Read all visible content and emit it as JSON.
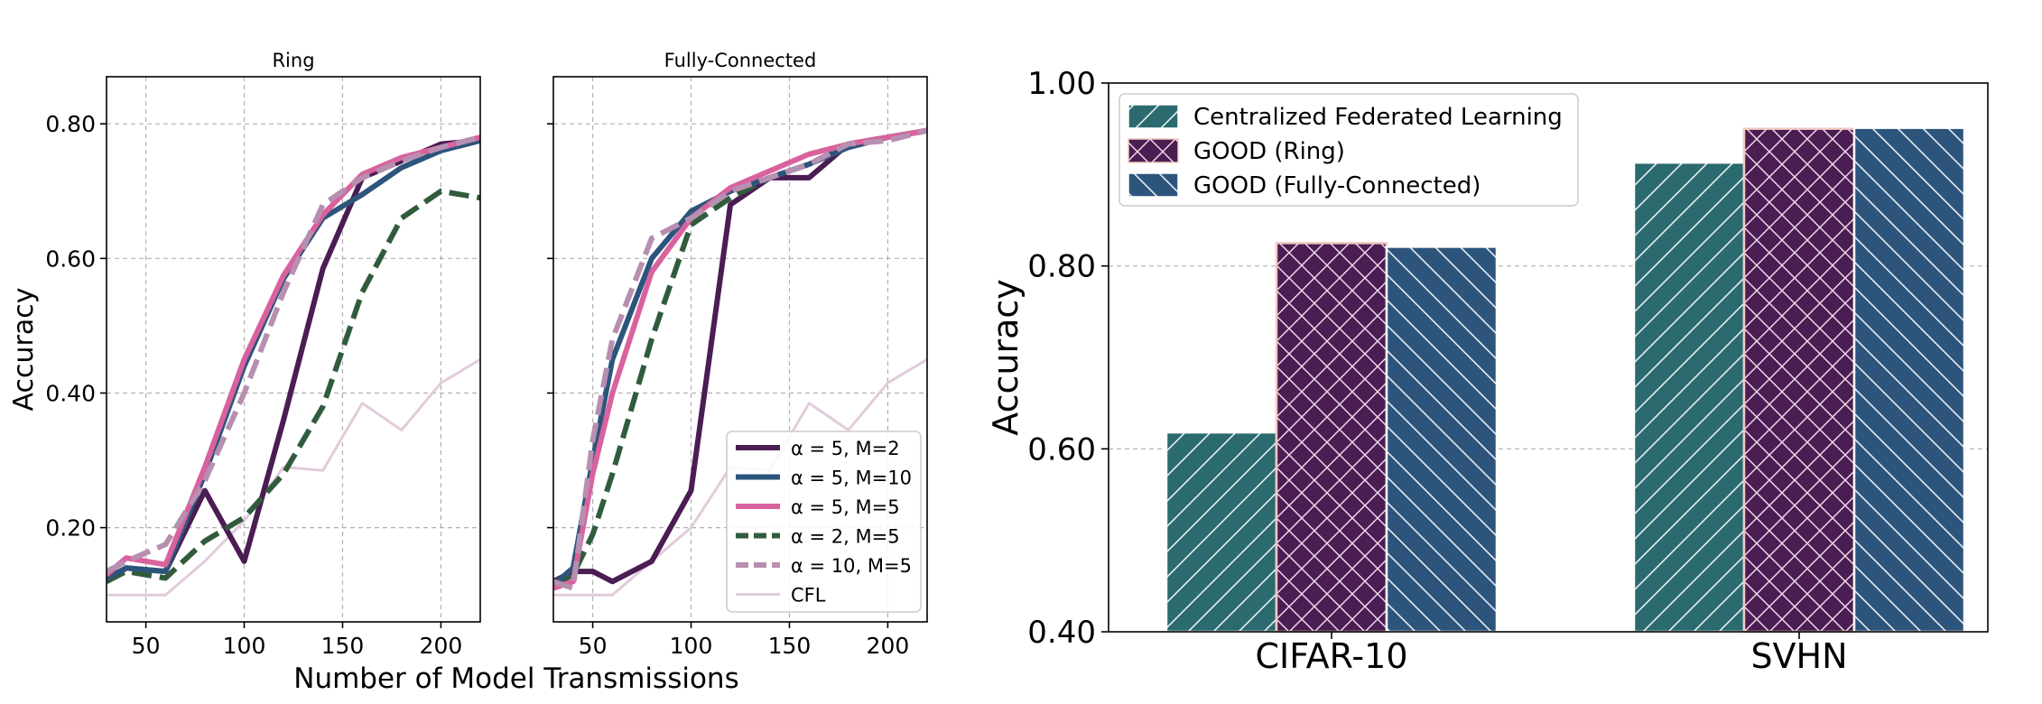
{
  "chart_data": [
    {
      "type": "line",
      "title": "Ring",
      "xlabel": "Number of Model Transmissions",
      "ylabel": "Accuracy",
      "xlim": [
        30,
        220
      ],
      "ylim": [
        0.06,
        0.87
      ],
      "xticks": [
        50,
        100,
        150,
        200
      ],
      "xtick_labels": [
        "50",
        "100",
        "150",
        "200"
      ],
      "yticks": [
        0.2,
        0.4,
        0.6,
        0.8
      ],
      "ytick_labels": [
        "0.20",
        "0.40",
        "0.60",
        "0.80"
      ],
      "grid": true,
      "series": [
        {
          "name": "CFL",
          "color": "#e2cbdc",
          "style": "solid",
          "x": [
            30,
            40,
            60,
            80,
            100,
            120,
            140,
            160,
            180,
            200,
            220
          ],
          "y": [
            0.1,
            0.1,
            0.1,
            0.15,
            0.21,
            0.29,
            0.285,
            0.385,
            0.345,
            0.415,
            0.45
          ]
        },
        {
          "name": "α = 5, M=2",
          "color": "#4a1d53",
          "style": "solid",
          "x": [
            30,
            40,
            60,
            80,
            100,
            120,
            140,
            160,
            180,
            200,
            220
          ],
          "y": [
            0.12,
            0.14,
            0.135,
            0.255,
            0.15,
            0.36,
            0.585,
            0.72,
            0.745,
            0.77,
            0.775
          ]
        },
        {
          "name": "α = 2, M=5",
          "color": "#315c3c",
          "style": "dashed",
          "x": [
            30,
            40,
            60,
            80,
            100,
            120,
            140,
            160,
            180,
            200,
            220
          ],
          "y": [
            0.12,
            0.135,
            0.125,
            0.18,
            0.215,
            0.28,
            0.38,
            0.55,
            0.66,
            0.7,
            0.69
          ]
        },
        {
          "name": "α = 5, M=10",
          "color": "#2d557c",
          "style": "solid",
          "x": [
            30,
            40,
            60,
            80,
            100,
            120,
            140,
            160,
            180,
            200,
            220
          ],
          "y": [
            0.125,
            0.14,
            0.135,
            0.28,
            0.44,
            0.57,
            0.66,
            0.695,
            0.735,
            0.76,
            0.775
          ]
        },
        {
          "name": "α = 5, M=5",
          "color": "#d9629e",
          "style": "solid",
          "x": [
            30,
            40,
            60,
            80,
            100,
            120,
            140,
            160,
            180,
            200,
            220
          ],
          "y": [
            0.13,
            0.155,
            0.145,
            0.29,
            0.45,
            0.575,
            0.665,
            0.725,
            0.75,
            0.765,
            0.78
          ]
        },
        {
          "name": "α = 10, M=5",
          "color": "#b78fb0",
          "style": "dashed",
          "x": [
            30,
            40,
            60,
            80,
            100,
            120,
            140,
            160,
            180,
            200,
            220
          ],
          "y": [
            0.135,
            0.15,
            0.175,
            0.27,
            0.4,
            0.55,
            0.68,
            0.72,
            0.745,
            0.765,
            0.78
          ]
        }
      ]
    },
    {
      "type": "line",
      "title": "Fully-Connected",
      "xlim": [
        30,
        220
      ],
      "ylim": [
        0.06,
        0.87
      ],
      "xticks": [
        50,
        100,
        150,
        200
      ],
      "xtick_labels": [
        "50",
        "100",
        "150",
        "200"
      ],
      "grid": true,
      "legend_position": "lower-right",
      "series": [
        {
          "name": "CFL",
          "color": "#e2cbdc",
          "style": "solid",
          "x": [
            30,
            40,
            60,
            80,
            100,
            120,
            140,
            160,
            180,
            200,
            220
          ],
          "y": [
            0.1,
            0.1,
            0.1,
            0.15,
            0.2,
            0.29,
            0.285,
            0.385,
            0.345,
            0.415,
            0.45
          ]
        },
        {
          "name": "α = 5, M=2",
          "color": "#4a1d53",
          "style": "solid",
          "x": [
            30,
            40,
            50,
            60,
            80,
            100,
            120,
            140,
            160,
            180,
            200,
            220
          ],
          "y": [
            0.12,
            0.135,
            0.135,
            0.12,
            0.15,
            0.255,
            0.68,
            0.72,
            0.72,
            0.77,
            0.78,
            0.79
          ]
        },
        {
          "name": "α = 2, M=5",
          "color": "#315c3c",
          "style": "dashed",
          "x": [
            30,
            40,
            50,
            60,
            80,
            100,
            120,
            140,
            160,
            180,
            200,
            220
          ],
          "y": [
            0.115,
            0.13,
            0.19,
            0.28,
            0.48,
            0.65,
            0.69,
            0.72,
            0.74,
            0.77,
            0.78,
            0.79
          ]
        },
        {
          "name": "α = 5, M=10",
          "color": "#2d557c",
          "style": "solid",
          "x": [
            30,
            40,
            50,
            60,
            80,
            100,
            120,
            140,
            160,
            180,
            200,
            220
          ],
          "y": [
            0.115,
            0.14,
            0.3,
            0.45,
            0.6,
            0.67,
            0.7,
            0.72,
            0.74,
            0.765,
            0.78,
            0.79
          ]
        },
        {
          "name": "α = 5, M=5",
          "color": "#d9629e",
          "style": "solid",
          "x": [
            30,
            40,
            50,
            60,
            80,
            100,
            120,
            140,
            160,
            180,
            200,
            220
          ],
          "y": [
            0.11,
            0.12,
            0.28,
            0.4,
            0.58,
            0.66,
            0.705,
            0.73,
            0.755,
            0.77,
            0.78,
            0.79
          ]
        },
        {
          "name": "α = 10, M=5",
          "color": "#b78fb0",
          "style": "dashed",
          "x": [
            30,
            40,
            50,
            60,
            80,
            100,
            120,
            140,
            160,
            180,
            200,
            220
          ],
          "y": [
            0.12,
            0.11,
            0.33,
            0.48,
            0.63,
            0.66,
            0.7,
            0.72,
            0.74,
            0.77,
            0.775,
            0.79
          ]
        }
      ],
      "legend_order": [
        "α = 5, M=2",
        "α = 5, M=10",
        "α = 5, M=5",
        "α = 2, M=5",
        "α = 10, M=5",
        "CFL"
      ]
    },
    {
      "type": "bar",
      "categories": [
        "CIFAR-10",
        "SVHN"
      ],
      "ylabel": "Accuracy",
      "ylim": [
        0.4,
        1.0
      ],
      "yticks": [
        0.4,
        0.6,
        0.8,
        1.0
      ],
      "ytick_labels": [
        "0.40",
        "0.60",
        "0.80",
        "1.00"
      ],
      "grid": true,
      "legend_position": "top-left",
      "series": [
        {
          "name": "Centralized Federated Learning",
          "color": "#2b6a6e",
          "hatch": "forward",
          "values": [
            0.618,
            0.913
          ]
        },
        {
          "name": "GOOD (Ring)",
          "color": "#4a1d53",
          "hatch": "cross",
          "values": [
            0.825,
            0.95
          ]
        },
        {
          "name": "GOOD (Fully-Connected)",
          "color": "#2d557c",
          "hatch": "back",
          "values": [
            0.821,
            0.951
          ]
        }
      ]
    }
  ]
}
